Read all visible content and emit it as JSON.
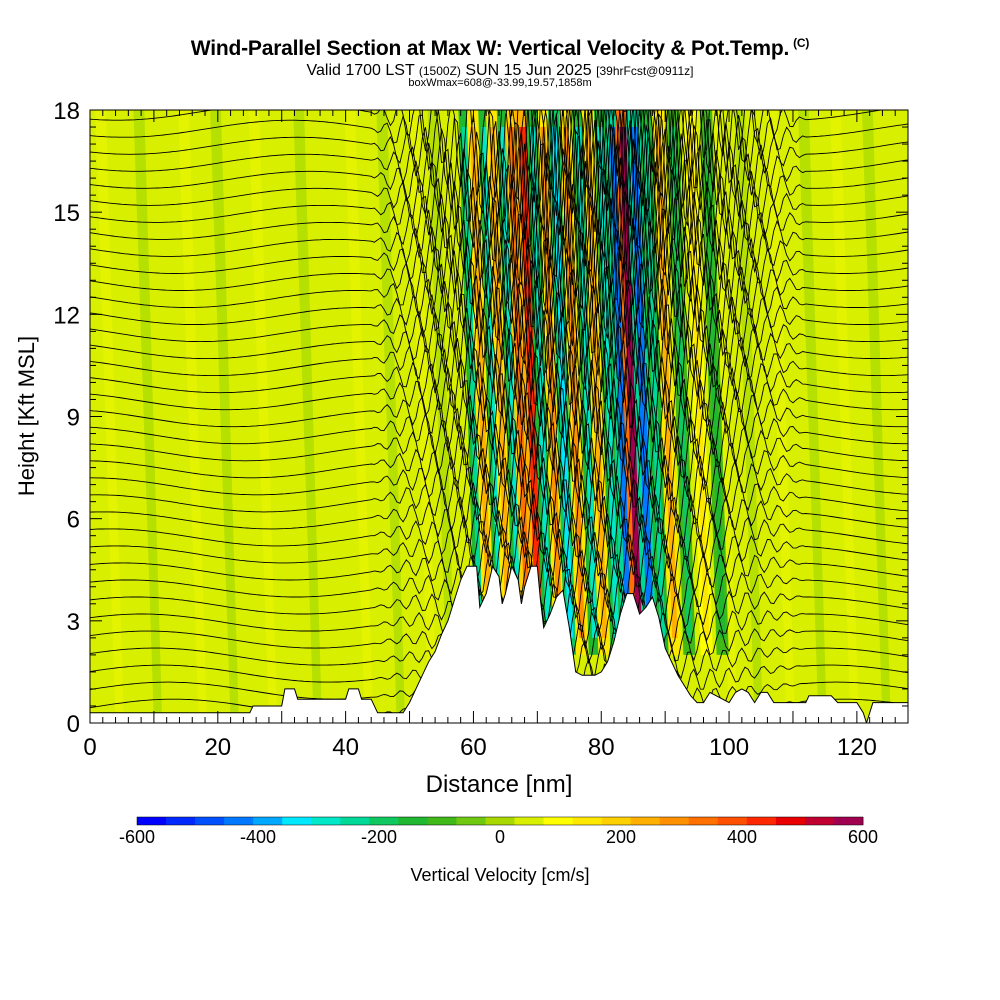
{
  "header": {
    "title": "Wind-Parallel Section at Max W: Vertical Velocity & Pot.Temp.",
    "copyright": "(C)",
    "valid_prefix": "Valid 1700 LST",
    "valid_utc": "(1500Z)",
    "valid_date": "SUN 15 Jun 2025",
    "forecast": "[39hrFcst@0911z]",
    "box_info": "boxWmax=608@-33.99,19.57,1858m"
  },
  "chart_data": {
    "type": "heatmap",
    "xlabel": "Distance [nm]",
    "ylabel": "Height [Kft MSL]",
    "xlim": [
      0,
      128
    ],
    "ylim": [
      0,
      18
    ],
    "xticks": [
      0,
      20,
      40,
      60,
      80,
      100,
      120
    ],
    "yticks": [
      0,
      3,
      6,
      9,
      12,
      15,
      18
    ],
    "colorbar": {
      "label": "Vertical Velocity [cm/s]",
      "min": -600,
      "max": 600,
      "ticks": [
        -600,
        -400,
        -200,
        0,
        200,
        400,
        600
      ],
      "colors": [
        "#0000ff",
        "#0028ff",
        "#0050ff",
        "#0078ff",
        "#00a8ff",
        "#00e8ff",
        "#00e8c8",
        "#00d898",
        "#10c860",
        "#20b830",
        "#40b818",
        "#70c810",
        "#a8d800",
        "#d8f000",
        "#ffff00",
        "#ffe800",
        "#ffd000",
        "#ffb000",
        "#ff9000",
        "#ff7000",
        "#ff5000",
        "#ff2800",
        "#e80000",
        "#c00030",
        "#a00050"
      ]
    },
    "terrain": [
      [
        0,
        0.3
      ],
      [
        25,
        0.3
      ],
      [
        25.5,
        0.5
      ],
      [
        30,
        0.5
      ],
      [
        30.5,
        1.0
      ],
      [
        32,
        1.0
      ],
      [
        32.5,
        0.7
      ],
      [
        40,
        0.7
      ],
      [
        40.5,
        1.0
      ],
      [
        42,
        1.0
      ],
      [
        42.5,
        0.7
      ],
      [
        44,
        0.7
      ],
      [
        45,
        0.3
      ],
      [
        49,
        0.3
      ],
      [
        50,
        0.6
      ],
      [
        51,
        1.0
      ],
      [
        52,
        1.4
      ],
      [
        53,
        1.8
      ],
      [
        54,
        2.1
      ],
      [
        55,
        2.6
      ],
      [
        56,
        3.0
      ],
      [
        57,
        3.6
      ],
      [
        58,
        4.2
      ],
      [
        59,
        4.6
      ],
      [
        60.5,
        4.6
      ],
      [
        61,
        3.4
      ],
      [
        62,
        3.8
      ],
      [
        63,
        4.6
      ],
      [
        64,
        4.3
      ],
      [
        64.5,
        3.5
      ],
      [
        65,
        3.8
      ],
      [
        66,
        4.6
      ],
      [
        67,
        4.2
      ],
      [
        67.5,
        3.5
      ],
      [
        68,
        4.0
      ],
      [
        69,
        4.6
      ],
      [
        70,
        4.6
      ],
      [
        70.5,
        3.6
      ],
      [
        71,
        2.8
      ],
      [
        72,
        3.2
      ],
      [
        73,
        3.7
      ],
      [
        74,
        3.9
      ],
      [
        75,
        2.8
      ],
      [
        76,
        1.5
      ],
      [
        77,
        1.4
      ],
      [
        78,
        1.4
      ],
      [
        79,
        1.4
      ],
      [
        80,
        1.5
      ],
      [
        81,
        1.8
      ],
      [
        82,
        2.4
      ],
      [
        83,
        3.2
      ],
      [
        84,
        3.8
      ],
      [
        85,
        3.8
      ],
      [
        86,
        3.2
      ],
      [
        87,
        3.4
      ],
      [
        88,
        3.7
      ],
      [
        89,
        3.1
      ],
      [
        90,
        2.2
      ],
      [
        91,
        1.8
      ],
      [
        92,
        1.4
      ],
      [
        93,
        1.1
      ],
      [
        94,
        0.8
      ],
      [
        95,
        0.6
      ],
      [
        96,
        0.6
      ],
      [
        97,
        0.9
      ],
      [
        98,
        0.8
      ],
      [
        100,
        0.6
      ],
      [
        101,
        0.9
      ],
      [
        102,
        1.0
      ],
      [
        103,
        0.9
      ],
      [
        104,
        0.6
      ],
      [
        105,
        0.9
      ],
      [
        106,
        0.9
      ],
      [
        107,
        0.6
      ],
      [
        112,
        0.6
      ],
      [
        112.5,
        0.8
      ],
      [
        116,
        0.8
      ],
      [
        117,
        0.6
      ],
      [
        120,
        0.6
      ],
      [
        121,
        0.3
      ],
      [
        121.5,
        0
      ],
      [
        122.5,
        0.6
      ],
      [
        128,
        0.6
      ]
    ],
    "wave_bands": [
      {
        "x": 61.2,
        "w": -250
      },
      {
        "x": 62.5,
        "w": 250
      },
      {
        "x": 64.3,
        "w": -300
      },
      {
        "x": 65.5,
        "w": 250
      },
      {
        "x": 67.2,
        "w": -280
      },
      {
        "x": 68.5,
        "w": 350
      },
      {
        "x": 70.3,
        "w": 420
      },
      {
        "x": 71.8,
        "w": -300
      },
      {
        "x": 73.5,
        "w": 280
      },
      {
        "x": 75.2,
        "w": -320
      },
      {
        "x": 77.0,
        "w": 300
      },
      {
        "x": 79.0,
        "w": -280
      },
      {
        "x": 80.5,
        "w": 250
      },
      {
        "x": 82.4,
        "w": -280
      },
      {
        "x": 84.4,
        "w": -420
      },
      {
        "x": 86.0,
        "w": 608
      },
      {
        "x": 87.7,
        "w": -420
      },
      {
        "x": 89.6,
        "w": -260
      },
      {
        "x": 91.5,
        "w": 230
      },
      {
        "x": 93.8,
        "w": -200
      },
      {
        "x": 96.5,
        "w": 160
      },
      {
        "x": 99.0,
        "w": -140
      }
    ],
    "max_w": 608
  }
}
